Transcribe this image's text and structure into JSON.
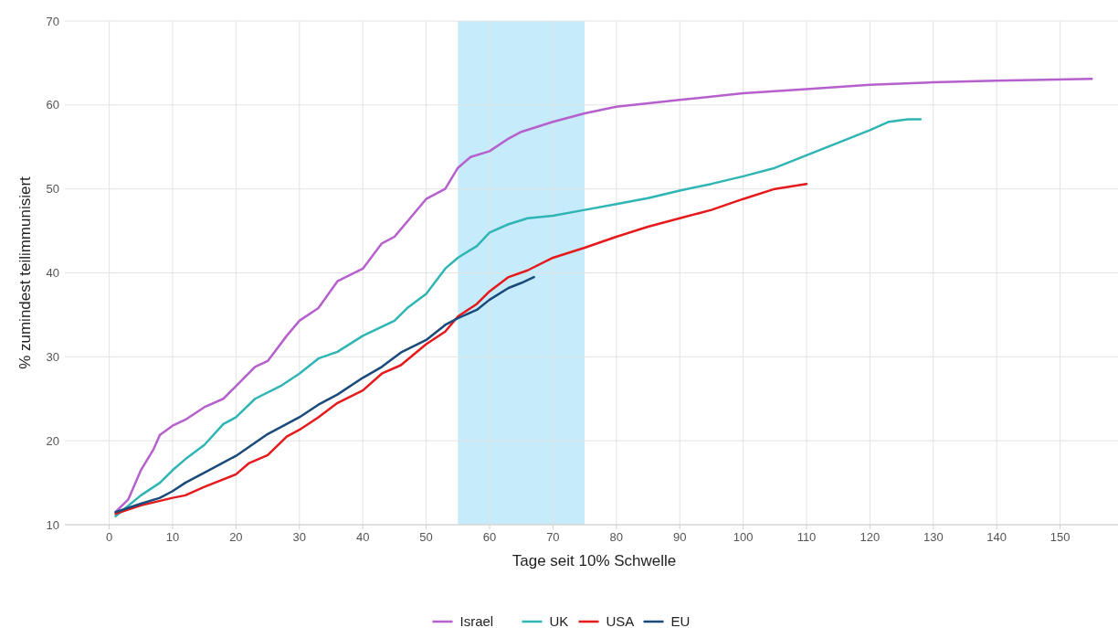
{
  "chart_data": {
    "type": "line",
    "xlabel": "Tage seit 10% Schwelle",
    "ylabel": "% zumindest teilimmunisiert",
    "xlim": [
      -7,
      160
    ],
    "ylim": [
      10,
      70
    ],
    "xticks": [
      0,
      10,
      20,
      30,
      40,
      50,
      60,
      70,
      80,
      90,
      100,
      110,
      120,
      130,
      140,
      150
    ],
    "yticks": [
      10,
      20,
      30,
      40,
      50,
      60,
      70
    ],
    "grid": true,
    "legend": "bottom",
    "line_style": "solid",
    "marker": "none",
    "bands": [
      {
        "axis": "x",
        "from": 55,
        "to": 75,
        "color": "#c6ebfb"
      }
    ],
    "series": [
      {
        "name": "Israel",
        "color": "#b660cd",
        "x": [
          1,
          3,
          5,
          7,
          8,
          10,
          12,
          15,
          18,
          20,
          23,
          25,
          28,
          30,
          33,
          36,
          40,
          43,
          45,
          48,
          50,
          53,
          55,
          57,
          60,
          63,
          65,
          70,
          75,
          80,
          90,
          100,
          110,
          120,
          130,
          140,
          155
        ],
        "values": [
          11.5,
          13,
          16.5,
          19,
          20.7,
          21.8,
          22.5,
          24,
          25,
          26.5,
          28.8,
          29.5,
          32.5,
          34.3,
          35.8,
          39,
          40.5,
          43.5,
          44.3,
          47,
          48.8,
          50,
          52.5,
          53.8,
          54.5,
          56,
          56.8,
          58,
          59,
          59.8,
          60.6,
          61.4,
          61.9,
          62.4,
          62.7,
          62.9,
          63.1
        ]
      },
      {
        "name": "UK",
        "color": "#30b5b5",
        "x": [
          1,
          5,
          8,
          10,
          12,
          15,
          18,
          20,
          23,
          27,
          30,
          33,
          36,
          40,
          45,
          47,
          50,
          53,
          55,
          58,
          60,
          63,
          66,
          70,
          75,
          80,
          85,
          90,
          95,
          100,
          105,
          110,
          115,
          120,
          123,
          126,
          128
        ],
        "values": [
          11,
          13.5,
          15,
          16.5,
          17.8,
          19.5,
          22,
          22.8,
          25,
          26.5,
          28,
          29.8,
          30.6,
          32.5,
          34.3,
          35.8,
          37.5,
          40.5,
          41.8,
          43.2,
          44.8,
          45.8,
          46.5,
          46.8,
          47.5,
          48.2,
          48.9,
          49.8,
          50.6,
          51.5,
          52.5,
          54,
          55.5,
          57,
          58,
          58.3,
          58.3
        ]
      },
      {
        "name": "USA",
        "color": "#e41a1c",
        "x": [
          1,
          5,
          10,
          12,
          15,
          20,
          22,
          25,
          28,
          30,
          33,
          36,
          40,
          43,
          46,
          50,
          53,
          55,
          58,
          60,
          63,
          66,
          70,
          75,
          80,
          85,
          90,
          95,
          100,
          105,
          110
        ],
        "values": [
          11.3,
          12.3,
          13.2,
          13.5,
          14.5,
          16,
          17.3,
          18.3,
          20.5,
          21.3,
          22.8,
          24.5,
          26,
          28,
          29,
          31.5,
          33,
          34.8,
          36.3,
          37.8,
          39.5,
          40.3,
          41.8,
          43,
          44.3,
          45.5,
          46.5,
          47.5,
          48.8,
          50,
          50.6
        ]
      },
      {
        "name": "EU",
        "color": "#1a4a7a",
        "x": [
          1,
          5,
          8,
          10,
          12,
          15,
          20,
          25,
          30,
          33,
          36,
          40,
          43,
          46,
          50,
          53,
          55,
          58,
          60,
          63,
          65,
          67
        ],
        "values": [
          11.5,
          12.5,
          13.2,
          14,
          15,
          16.2,
          18.2,
          20.8,
          22.8,
          24.3,
          25.5,
          27.5,
          28.8,
          30.5,
          32,
          33.8,
          34.6,
          35.6,
          36.8,
          38.2,
          38.8,
          39.5
        ]
      }
    ]
  }
}
